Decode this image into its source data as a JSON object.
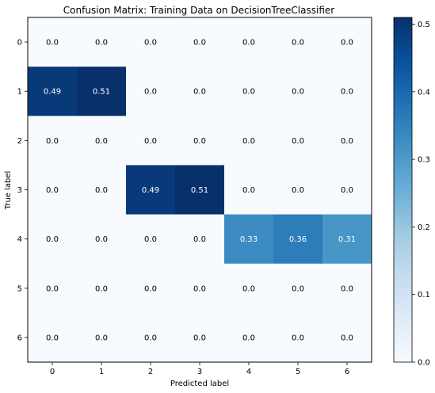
{
  "chart_data": {
    "type": "heatmap",
    "title": "Confusion Matrix: Training Data on DecisionTreeClassifier",
    "xlabel": "Predicted label",
    "ylabel": "True label",
    "x_categories": [
      "0",
      "1",
      "2",
      "3",
      "4",
      "5",
      "6"
    ],
    "y_categories": [
      "0",
      "1",
      "2",
      "3",
      "4",
      "5",
      "6"
    ],
    "values": [
      [
        0.0,
        0.0,
        0.0,
        0.0,
        0.0,
        0.0,
        0.0
      ],
      [
        0.49,
        0.51,
        0.0,
        0.0,
        0.0,
        0.0,
        0.0
      ],
      [
        0.0,
        0.0,
        0.0,
        0.0,
        0.0,
        0.0,
        0.0
      ],
      [
        0.0,
        0.0,
        0.49,
        0.51,
        0.0,
        0.0,
        0.0
      ],
      [
        0.0,
        0.0,
        0.0,
        0.0,
        0.33,
        0.36,
        0.31
      ],
      [
        0.0,
        0.0,
        0.0,
        0.0,
        0.0,
        0.0,
        0.0
      ],
      [
        0.0,
        0.0,
        0.0,
        0.0,
        0.0,
        0.0,
        0.0
      ]
    ],
    "colormap": "Blues",
    "colorbar": {
      "min": 0.0,
      "max": 0.51,
      "ticks": [
        0.0,
        0.1,
        0.2,
        0.3,
        0.4,
        0.5
      ],
      "tick_labels": [
        "0.0",
        "0.1",
        "0.2",
        "0.3",
        "0.4",
        "0.5"
      ]
    },
    "grid": false
  }
}
